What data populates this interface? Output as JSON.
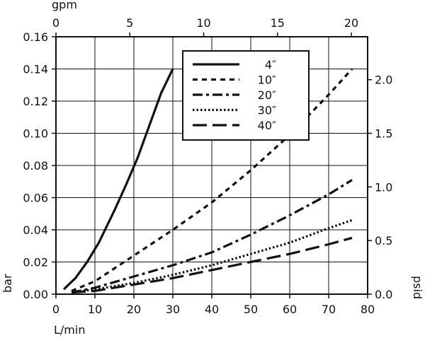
{
  "chart_data": {
    "type": "line",
    "title": "",
    "xlabel": "L/min",
    "ylabel": "bar",
    "x2label": "gpm",
    "y2label": "psid",
    "xlim": [
      0,
      80
    ],
    "ylim": [
      0,
      0.16
    ],
    "x2lim": [
      0,
      21.1
    ],
    "y2lim": [
      0,
      2.4
    ],
    "x_ticks": [
      "0",
      "10",
      "20",
      "30",
      "40",
      "50",
      "60",
      "70",
      "80"
    ],
    "y_ticks": [
      "0.00",
      "0.02",
      "0.04",
      "0.06",
      "0.08",
      "0.10",
      "0.12",
      "0.14",
      "0.16"
    ],
    "x2_ticks": [
      "0",
      "5",
      "10",
      "15",
      "20"
    ],
    "y2_ticks": [
      "0.0",
      "0.5",
      "1.0",
      "1.5",
      "2.0"
    ],
    "grid": true,
    "legend_position": "top-right",
    "series": [
      {
        "name": "4″",
        "style": "solid",
        "x": [
          2,
          5,
          8,
          11,
          15,
          18,
          21,
          24,
          27,
          30
        ],
        "y": [
          0.003,
          0.01,
          0.02,
          0.032,
          0.052,
          0.068,
          0.085,
          0.105,
          0.125,
          0.14
        ]
      },
      {
        "name": "10″",
        "style": "dash-short",
        "x": [
          4,
          10,
          20,
          30,
          40,
          50,
          60,
          70,
          76
        ],
        "y": [
          0.002,
          0.008,
          0.024,
          0.04,
          0.057,
          0.077,
          0.099,
          0.124,
          0.14
        ]
      },
      {
        "name": "20″",
        "style": "dash-dot",
        "x": [
          4,
          10,
          20,
          30,
          40,
          50,
          60,
          70,
          76
        ],
        "y": [
          0.001,
          0.004,
          0.011,
          0.018,
          0.026,
          0.037,
          0.049,
          0.062,
          0.071
        ]
      },
      {
        "name": "30″",
        "style": "dotted",
        "x": [
          4,
          10,
          20,
          30,
          40,
          50,
          60,
          70,
          76
        ],
        "y": [
          0.001,
          0.003,
          0.007,
          0.012,
          0.018,
          0.025,
          0.032,
          0.041,
          0.046
        ]
      },
      {
        "name": "40″",
        "style": "dash-long",
        "x": [
          4,
          10,
          20,
          30,
          40,
          50,
          60,
          70,
          76
        ],
        "y": [
          0.001,
          0.002,
          0.006,
          0.01,
          0.015,
          0.02,
          0.025,
          0.031,
          0.035
        ]
      }
    ]
  }
}
